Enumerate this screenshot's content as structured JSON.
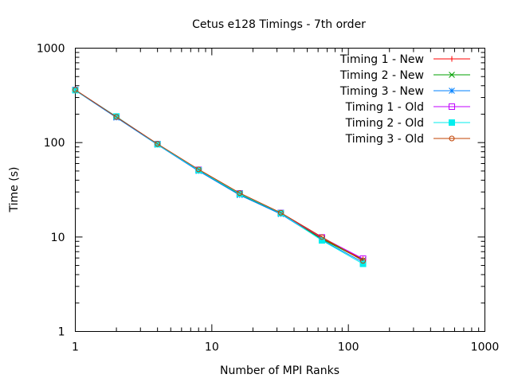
{
  "chart_data": {
    "type": "line",
    "title": "Cetus e128 Timings - 7th order",
    "xlabel": "Number of MPI Ranks",
    "ylabel": "Time (s)",
    "xscale": "log",
    "yscale": "log",
    "xlim": [
      1,
      1000
    ],
    "ylim": [
      1,
      1000
    ],
    "xticks": [
      {
        "value": 1,
        "label": "1"
      },
      {
        "value": 10,
        "label": "10"
      },
      {
        "value": 100,
        "label": "100"
      },
      {
        "value": 1000,
        "label": "1000"
      }
    ],
    "yticks": [
      {
        "value": 1,
        "label": "1"
      },
      {
        "value": 10,
        "label": "10"
      },
      {
        "value": 100,
        "label": "100"
      },
      {
        "value": 1000,
        "label": "1000"
      }
    ],
    "grid": false,
    "legend_position": "top-right",
    "x": [
      1,
      2,
      4,
      8,
      16,
      32,
      64,
      128
    ],
    "series": [
      {
        "name": "Timing 1 - New",
        "color": "#ff0000",
        "marker": "plus",
        "values": [
          360,
          186,
          96,
          51,
          28.5,
          17.8,
          9.7,
          5.8
        ]
      },
      {
        "name": "Timing 2 - New",
        "color": "#00a000",
        "marker": "cross",
        "values": [
          358,
          185,
          95.5,
          50.5,
          28.2,
          17.6,
          9.5,
          5.7
        ]
      },
      {
        "name": "Timing 3 - New",
        "color": "#0080ff",
        "marker": "star",
        "values": [
          357,
          184,
          95,
          50,
          27.8,
          17.5,
          9.3,
          5.4
        ]
      },
      {
        "name": "Timing 1 - Old",
        "color": "#c000ff",
        "marker": "open-square",
        "values": [
          361,
          188,
          96.5,
          51.5,
          29,
          18,
          9.9,
          5.9
        ]
      },
      {
        "name": "Timing 2 - Old",
        "color": "#00eeee",
        "marker": "filled-square",
        "values": [
          359,
          189,
          96,
          51,
          28.7,
          17.9,
          9.2,
          5.2
        ]
      },
      {
        "name": "Timing 3 - Old",
        "color": "#c04000",
        "marker": "open-circle",
        "values": [
          362,
          187,
          97,
          52,
          29.2,
          18.1,
          10,
          5.6
        ]
      }
    ]
  }
}
